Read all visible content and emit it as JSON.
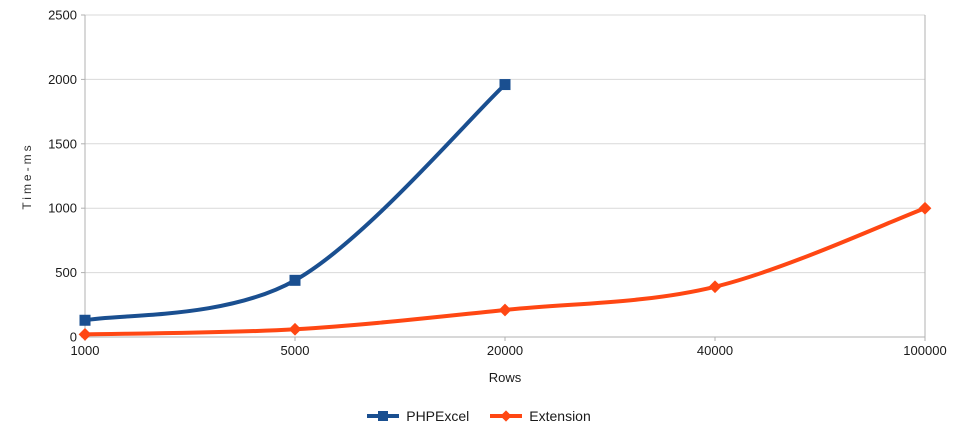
{
  "chart_data": {
    "type": "line",
    "title": "",
    "xlabel": "Rows",
    "ylabel": "Time-ms",
    "categories": [
      "1000",
      "5000",
      "20000",
      "40000",
      "100000"
    ],
    "series": [
      {
        "name": "PHPExcel",
        "color": "#1a4f90",
        "marker": "square",
        "values": [
          130,
          440,
          1960,
          null,
          null
        ]
      },
      {
        "name": "Extension",
        "color": "#ff4713",
        "marker": "diamond",
        "values": [
          20,
          60,
          210,
          390,
          1000
        ]
      }
    ],
    "ylim": [
      0,
      2500
    ],
    "ytick_step": 500,
    "grid": "on",
    "smooth_lines": true,
    "legend_position": "bottom",
    "axis_color": "#b0b0b0",
    "grid_color": "#d9d9d9",
    "tick_label_color": "#1a1a1a"
  }
}
